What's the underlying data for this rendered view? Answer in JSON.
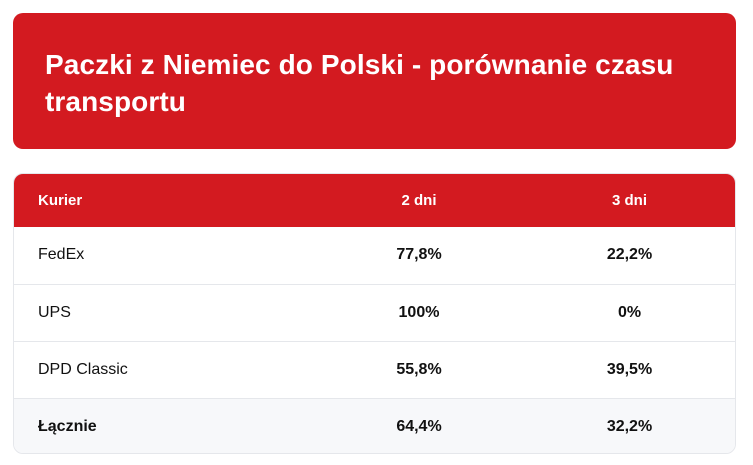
{
  "header": {
    "title": "Paczki z Niemiec do Polski - porównanie czasu transportu"
  },
  "table": {
    "columns": [
      "Kurier",
      "2 dni",
      "3 dni"
    ],
    "rows": [
      {
        "courier": "FedEx",
        "two_days": "77,8%",
        "three_days": "22,2%"
      },
      {
        "courier": "UPS",
        "two_days": "100%",
        "three_days": "0%"
      },
      {
        "courier": "DPD Classic",
        "two_days": "55,8%",
        "three_days": "39,5%"
      }
    ],
    "total": {
      "courier": "Łącznie",
      "two_days": "64,4%",
      "three_days": "32,2%"
    }
  },
  "colors": {
    "accent": "#d31a20",
    "border": "#e5e7eb",
    "total_row_bg": "#f7f8fa"
  }
}
